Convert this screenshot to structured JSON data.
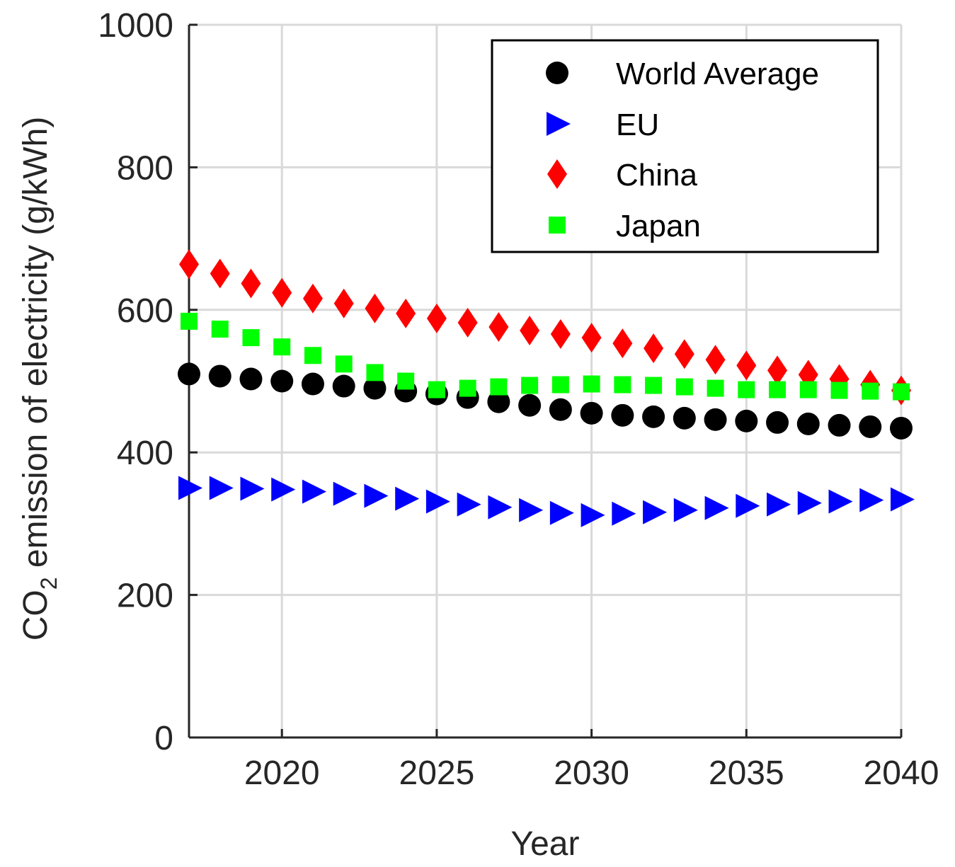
{
  "chart_data": {
    "type": "scatter",
    "title": "",
    "xlabel": "Year",
    "ylabel": {
      "prefix": "CO",
      "subscript": "2",
      "suffix": " emission of electricity (g/kWh)"
    },
    "xlim": [
      2017,
      2040
    ],
    "ylim": [
      0,
      1000
    ],
    "xticks": [
      2020,
      2025,
      2030,
      2035,
      2040
    ],
    "yticks": [
      0,
      200,
      400,
      600,
      800,
      1000
    ],
    "grid": true,
    "legend_position": "top-right",
    "x": [
      2017,
      2018,
      2019,
      2020,
      2021,
      2022,
      2023,
      2024,
      2025,
      2026,
      2027,
      2028,
      2029,
      2030,
      2031,
      2032,
      2033,
      2034,
      2035,
      2036,
      2037,
      2038,
      2039,
      2040
    ],
    "series": [
      {
        "name": "World Average",
        "marker": "circle",
        "color": "#000000",
        "values": [
          510,
          507,
          503,
          500,
          496,
          493,
          490,
          486,
          482,
          477,
          471,
          466,
          460,
          455,
          452,
          450,
          448,
          446,
          444,
          442,
          440,
          438,
          436,
          434
        ]
      },
      {
        "name": "EU",
        "marker": "triangle-right",
        "color": "#0000ff",
        "values": [
          350,
          350,
          349,
          348,
          345,
          342,
          339,
          335,
          331,
          327,
          323,
          319,
          315,
          312,
          314,
          316,
          319,
          322,
          325,
          327,
          329,
          331,
          333,
          334
        ]
      },
      {
        "name": "China",
        "marker": "diamond",
        "color": "#ff0000",
        "values": [
          664,
          651,
          637,
          624,
          616,
          609,
          602,
          595,
          588,
          582,
          576,
          571,
          566,
          561,
          553,
          546,
          538,
          530,
          522,
          515,
          509,
          503,
          495,
          487
        ]
      },
      {
        "name": "Japan",
        "marker": "square",
        "color": "#00ff00",
        "values": [
          584,
          573,
          561,
          548,
          536,
          524,
          512,
          500,
          488,
          490,
          492,
          494,
          495,
          496,
          495,
          494,
          492,
          490,
          488,
          488,
          488,
          487,
          486,
          485
        ]
      }
    ]
  }
}
